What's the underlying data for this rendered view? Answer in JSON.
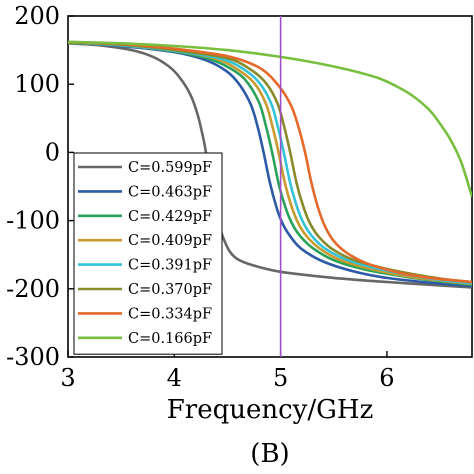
{
  "chart_data": {
    "type": "line",
    "xlabel": "Frequency/GHz",
    "ylabel": "",
    "panel_label": "(B)",
    "xlim": [
      3,
      6.8
    ],
    "ylim": [
      -300,
      200
    ],
    "xticks": [
      3,
      4,
      5,
      6
    ],
    "yticks": [
      200,
      100,
      0,
      -100,
      -200,
      -300
    ],
    "grid": false,
    "legend_position": "bottom-left",
    "marker_line": {
      "x": 5,
      "color": "#a24fc7"
    },
    "series": [
      {
        "name": "C=0.599pF",
        "color": "#676767",
        "x": [
          3,
          3.3,
          3.6,
          3.8,
          3.95,
          4.05,
          4.15,
          4.22,
          4.28,
          4.33,
          4.38,
          4.42,
          4.46,
          4.52,
          4.6,
          4.75,
          5.0,
          5.5,
          6.0,
          6.5,
          6.8
        ],
        "y": [
          160,
          157,
          150,
          140,
          126,
          110,
          85,
          55,
          15,
          -30,
          -75,
          -105,
          -125,
          -145,
          -157,
          -166,
          -175,
          -184,
          -190,
          -195,
          -198
        ]
      },
      {
        "name": "C=0.463pF",
        "color": "#2c5aa6",
        "x": [
          3,
          3.5,
          4.0,
          4.3,
          4.5,
          4.62,
          4.72,
          4.78,
          4.84,
          4.9,
          4.96,
          5.02,
          5.1,
          5.2,
          5.4,
          5.7,
          6.0,
          6.4,
          6.8
        ],
        "y": [
          161,
          156,
          147,
          135,
          118,
          98,
          70,
          40,
          0,
          -45,
          -80,
          -105,
          -125,
          -142,
          -160,
          -175,
          -184,
          -191,
          -196
        ]
      },
      {
        "name": "C=0.429pF",
        "color": "#2aa35a",
        "x": [
          3,
          3.5,
          4.0,
          4.35,
          4.58,
          4.7,
          4.8,
          4.86,
          4.92,
          4.98,
          5.04,
          5.1,
          5.18,
          5.3,
          5.5,
          5.8,
          6.2,
          6.5,
          6.8
        ],
        "y": [
          161,
          157,
          148,
          136,
          118,
          100,
          72,
          40,
          0,
          -45,
          -78,
          -102,
          -122,
          -140,
          -158,
          -172,
          -183,
          -189,
          -194
        ]
      },
      {
        "name": "C=0.409pF",
        "color": "#c99a2e",
        "x": [
          3,
          3.5,
          4.0,
          4.4,
          4.63,
          4.76,
          4.86,
          4.92,
          4.98,
          5.04,
          5.1,
          5.16,
          5.24,
          5.36,
          5.55,
          5.85,
          6.2,
          6.5,
          6.8
        ],
        "y": [
          161,
          157,
          149,
          137,
          118,
          100,
          72,
          40,
          0,
          -45,
          -78,
          -102,
          -122,
          -140,
          -157,
          -171,
          -182,
          -188,
          -193
        ]
      },
      {
        "name": "C=0.391pF",
        "color": "#33c2d6",
        "x": [
          3,
          3.5,
          4.0,
          4.45,
          4.68,
          4.81,
          4.91,
          4.97,
          5.03,
          5.09,
          5.15,
          5.21,
          5.29,
          5.41,
          5.6,
          5.9,
          6.25,
          6.55,
          6.8
        ],
        "y": [
          161,
          157,
          149,
          137,
          119,
          100,
          72,
          40,
          0,
          -45,
          -78,
          -102,
          -122,
          -140,
          -156,
          -170,
          -181,
          -188,
          -192
        ]
      },
      {
        "name": "C=0.370pF",
        "color": "#8a8a2a",
        "x": [
          3,
          3.5,
          4.0,
          4.5,
          4.74,
          4.87,
          4.97,
          5.03,
          5.09,
          5.15,
          5.21,
          5.27,
          5.35,
          5.47,
          5.66,
          5.95,
          6.3,
          6.55,
          6.8
        ],
        "y": [
          161,
          158,
          150,
          138,
          119,
          100,
          72,
          40,
          0,
          -45,
          -78,
          -102,
          -122,
          -140,
          -156,
          -169,
          -180,
          -186,
          -190
        ]
      },
      {
        "name": "C=0.334pF",
        "color": "#e4692b",
        "x": [
          3,
          3.5,
          4.0,
          4.5,
          4.8,
          4.98,
          5.1,
          5.17,
          5.23,
          5.29,
          5.35,
          5.41,
          5.49,
          5.61,
          5.8,
          6.1,
          6.4,
          6.8
        ],
        "y": [
          162,
          159,
          152,
          141,
          124,
          98,
          68,
          36,
          0,
          -45,
          -80,
          -106,
          -128,
          -146,
          -162,
          -176,
          -184,
          -190
        ]
      },
      {
        "name": "C=0.166pF",
        "color": "#79bf3f",
        "x": [
          3,
          3.5,
          4.0,
          4.5,
          5.0,
          5.5,
          5.9,
          6.1,
          6.25,
          6.4,
          6.5,
          6.6,
          6.7,
          6.8
        ],
        "y": [
          162,
          160,
          156,
          150,
          140,
          126,
          110,
          96,
          82,
          62,
          42,
          18,
          -15,
          -65
        ]
      }
    ]
  }
}
